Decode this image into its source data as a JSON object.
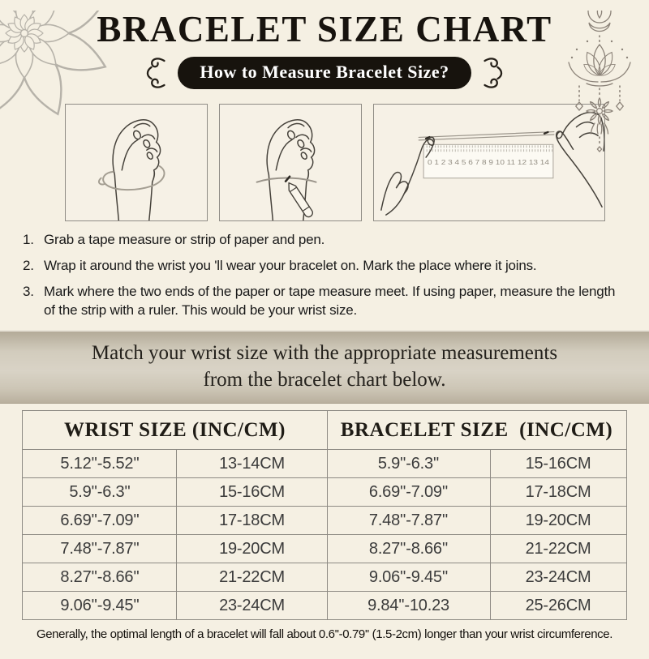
{
  "header": {
    "title": "BRACELET SIZE CHART",
    "badge_label": "How to Measure Bracelet Size?"
  },
  "illustrations": {
    "ruler_scale": "0 1 2 3 4 5 6 7 8 9 10 11 12 13 14"
  },
  "instructions": [
    {
      "number": "1.",
      "text": "Grab a tape measure or strip of paper and pen."
    },
    {
      "number": "2.",
      "text": "Wrap it around the wrist you 'll wear your bracelet on. Mark the place where it joins."
    },
    {
      "number": "3.",
      "text": "Mark where the two ends of the paper or tape measure meet. If using paper, measure the length of the strip with a ruler. This would be your wrist size."
    }
  ],
  "banner": {
    "line1": "Match your wrist size with the appropriate measurements",
    "line2": "from the bracelet chart below."
  },
  "table": {
    "header_wrist": "WRIST SIZE (INC/CM)",
    "header_bracelet": "BRACELET SIZE  (INC/CM)",
    "rows": [
      [
        "5.12''-5.52''",
        "13-14CM",
        "5.9''-6.3''",
        "15-16CM"
      ],
      [
        "5.9''-6.3''",
        "15-16CM",
        "6.69''-7.09''",
        "17-18CM"
      ],
      [
        "6.69''-7.09''",
        "17-18CM",
        "7.48''-7.87''",
        "19-20CM"
      ],
      [
        "7.48''-7.87''",
        "19-20CM",
        "8.27''-8.66''",
        "21-22CM"
      ],
      [
        "8.27''-8.66''",
        "21-22CM",
        "9.06''-9.45''",
        "23-24CM"
      ],
      [
        "9.06''-9.45''",
        "23-24CM",
        "9.84''-10.23",
        "25-26CM"
      ]
    ]
  },
  "footer": {
    "note": "Generally, the optimal length of a bracelet will fall about 0.6''-0.79'' (1.5-2cm) longer than your wrist circumference."
  },
  "decorations": {
    "top_left": "mandala-flower",
    "top_right": "hanging-lotus-ornament",
    "badge_sides": "curly-flourish"
  },
  "colors": {
    "background": "#f5f0e3",
    "badge_bg": "#17130d",
    "badge_text": "#ffffff",
    "banner_bg": "#cdc6b6",
    "table_border": "#8d8a83",
    "text_primary": "#1c1c1c",
    "mandala_gray": "#b6b2a9",
    "lotus_brown": "#8b8278",
    "sketch_line": "#45413a",
    "tape_gray": "#a49e92"
  }
}
